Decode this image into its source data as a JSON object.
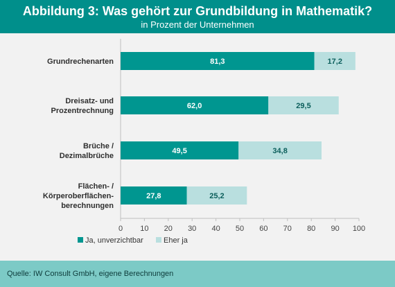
{
  "title": "Abbildung 3: Was gehört zur Grundbildung in Mathematik?",
  "subtitle": "in Prozent der Unternehmen",
  "source": "Quelle: IW Consult GmbH, eigene Berechnungen",
  "colors": {
    "header_bg": "#008f8b",
    "series_ja": "#009690",
    "series_eher": "#b9dfdf",
    "label_ja": "#ffffff",
    "label_eher": "#0b5e5b",
    "footer_bg": "#7ccac6"
  },
  "chart_data": {
    "type": "bar",
    "orientation": "horizontal",
    "stacked": true,
    "categories": [
      [
        "Grundrechenarten"
      ],
      [
        "Dreisatz- und",
        "Prozentrechnung"
      ],
      [
        "Brüche /",
        "Dezimalbrüche"
      ],
      [
        "Flächen- /",
        "Körperoberflächen-",
        "berechnungen"
      ]
    ],
    "series": [
      {
        "name": "Ja, unverzichtbar",
        "values": [
          81.3,
          62.0,
          49.5,
          27.8
        ],
        "labels": [
          "81,3",
          "62,0",
          "49,5",
          "27,8"
        ]
      },
      {
        "name": "Eher ja",
        "values": [
          17.2,
          29.5,
          34.8,
          25.2
        ],
        "labels": [
          "17,2",
          "29,5",
          "34,8",
          "25,2"
        ]
      }
    ],
    "xlim": [
      0,
      100
    ],
    "xticks": [
      0,
      10,
      20,
      30,
      40,
      50,
      60,
      70,
      80,
      90,
      100
    ],
    "grid": false,
    "legend_position": "bottom-left"
  }
}
